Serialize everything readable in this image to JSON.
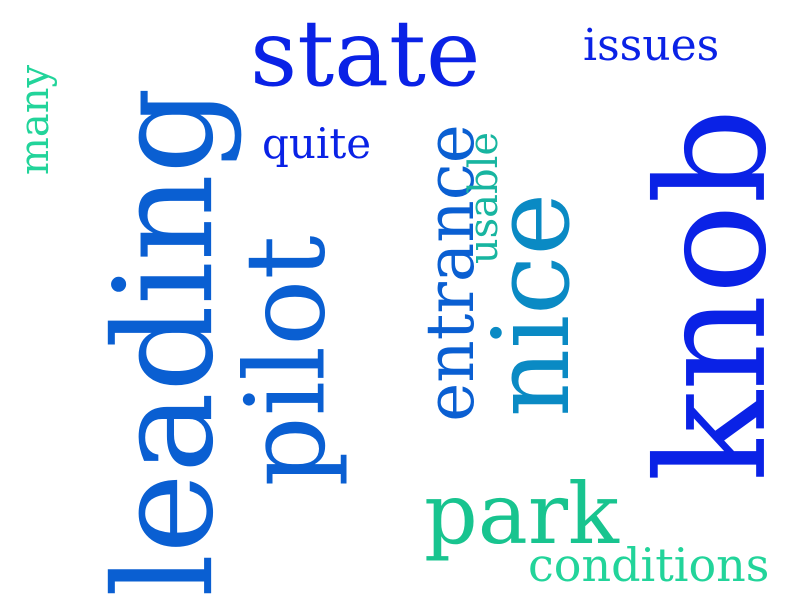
{
  "words": {
    "state": {
      "text": "state",
      "color": "#0a22e6"
    },
    "issues": {
      "text": "issues",
      "color": "#0a22e6"
    },
    "many": {
      "text": "many",
      "color": "#22d49a"
    },
    "leading": {
      "text": "leading",
      "color": "#0a5fd2"
    },
    "quite": {
      "text": "quite",
      "color": "#0a22e6"
    },
    "pilot": {
      "text": "pilot",
      "color": "#0a5fd2"
    },
    "entrance": {
      "text": "entrance",
      "color": "#0a5fd2"
    },
    "usable": {
      "text": "usable",
      "color": "#18b5a0"
    },
    "nice": {
      "text": "nice",
      "color": "#0a8ac4"
    },
    "knob": {
      "text": "knob",
      "color": "#0a22e6"
    },
    "park": {
      "text": "park",
      "color": "#18c48f"
    },
    "conditions": {
      "text": "conditions",
      "color": "#22d49a"
    }
  }
}
